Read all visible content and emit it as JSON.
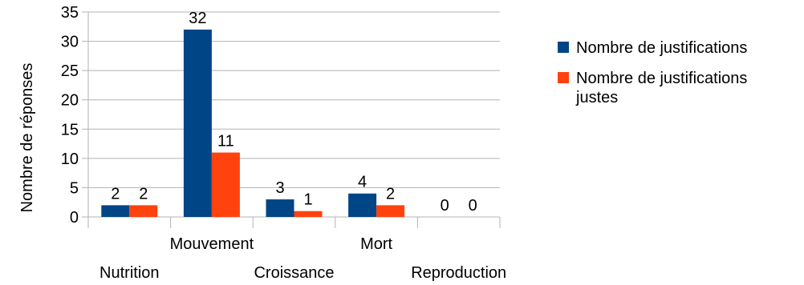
{
  "colors": {
    "series_1": "#004586",
    "series_2": "#ff420e",
    "gridline": "#b3b3b3",
    "text": "#000000"
  },
  "chart_data": {
    "type": "bar",
    "title": "",
    "xlabel": "",
    "ylabel": "Nombre de réponses",
    "ylim": [
      0,
      35
    ],
    "yticks": [
      0,
      5,
      10,
      15,
      20,
      25,
      30,
      35
    ],
    "grid": "horizontal",
    "legend_position": "right",
    "categories": [
      "Nutrition",
      "Mouvement",
      "Croissance",
      "Mort",
      "Reproduction"
    ],
    "series": [
      {
        "name": "Nombre de justifications",
        "values": [
          2,
          32,
          3,
          4,
          0
        ]
      },
      {
        "name": "Nombre de justifications justes",
        "values": [
          2,
          11,
          1,
          2,
          0
        ]
      }
    ]
  }
}
